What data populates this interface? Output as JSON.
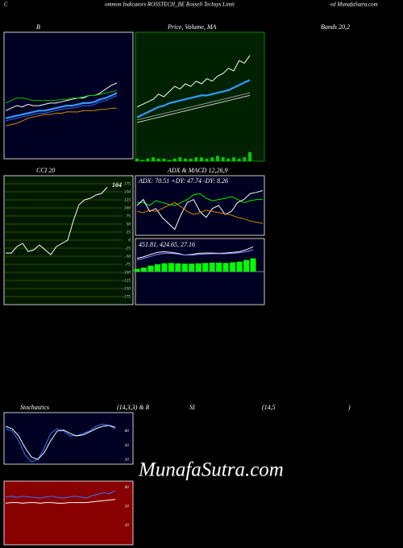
{
  "header": {
    "left": "C",
    "center": "ommon Indicators ROSSTECH_BE Rossell Techsys Limit",
    "right": "ed MunafaSutra.com"
  },
  "watermark": "MunafaSutra.com",
  "chart_data": [
    {
      "type": "line",
      "title": "B",
      "ylim": [
        0,
        100
      ],
      "series": [
        {
          "color": "#ffffff",
          "values": [
            38,
            40,
            42,
            41,
            43,
            42,
            42,
            43,
            44,
            44,
            45,
            46,
            47,
            48,
            48,
            50,
            50,
            52,
            55,
            58,
            60
          ]
        },
        {
          "color": "#00cc00",
          "values": [
            44,
            46,
            48,
            48,
            47,
            46,
            46,
            46,
            46,
            46,
            47,
            47,
            48,
            48,
            49,
            50,
            50,
            51,
            52,
            53,
            54
          ]
        },
        {
          "color": "#3399ff",
          "values": [
            32,
            33,
            34,
            35,
            36,
            37,
            38,
            38,
            39,
            40,
            41,
            42,
            42,
            43,
            44,
            44,
            45,
            47,
            48,
            50,
            52
          ]
        },
        {
          "color": "#3366ff",
          "values": [
            30,
            31,
            32,
            33,
            34,
            35,
            36,
            36,
            37,
            38,
            39,
            40,
            40,
            41,
            42,
            42,
            43,
            45,
            46,
            48,
            50
          ]
        },
        {
          "color": "#dd8800",
          "values": [
            26,
            27,
            28,
            30,
            32,
            33,
            34,
            35,
            35,
            36,
            36,
            37,
            37,
            37,
            38,
            38,
            38,
            39,
            39,
            40,
            40
          ]
        }
      ]
    },
    {
      "type": "line",
      "title": "Price, Volume, MA",
      "ylim": [
        0,
        100
      ],
      "series": [
        {
          "color": "#ffffff",
          "values": [
            42,
            44,
            46,
            48,
            52,
            50,
            54,
            58,
            56,
            60,
            58,
            62,
            60,
            64,
            62,
            66,
            68,
            72,
            70,
            78,
            76,
            82
          ]
        },
        {
          "color": "#3399ff",
          "values": [
            34,
            36,
            38,
            40,
            42,
            43,
            45,
            46,
            47,
            48,
            49,
            50,
            51,
            51,
            52,
            53,
            54,
            55,
            57,
            59,
            61,
            63
          ]
        },
        {
          "color": "#999999",
          "values": [
            32,
            33,
            34,
            35,
            36,
            37,
            38,
            39,
            40,
            41,
            42,
            43,
            44,
            45,
            46,
            47,
            48,
            49,
            50,
            51,
            52,
            53
          ]
        },
        {
          "color": "#cccccc",
          "values": [
            30,
            31,
            32,
            33,
            34,
            35,
            36,
            37,
            38,
            39,
            40,
            41,
            42,
            43,
            44,
            45,
            46,
            47,
            48,
            49,
            50,
            51
          ]
        }
      ],
      "volume": {
        "color": "#00cc00",
        "values": [
          2,
          1,
          2,
          3,
          2,
          2,
          1,
          2,
          3,
          2,
          2,
          3,
          3,
          2,
          3,
          4,
          3,
          2,
          3,
          2,
          3,
          7
        ]
      }
    },
    {
      "type": "line",
      "title": "Bands 20,2",
      "ylim": [
        0,
        100
      ],
      "series": []
    },
    {
      "type": "line",
      "title": "CCI 20",
      "annotation": "164",
      "ylim": [
        -200,
        200
      ],
      "yticks": [
        175,
        150,
        125,
        100,
        75,
        50,
        25,
        0,
        -25,
        -50,
        -75,
        -100,
        -125,
        -150,
        -175
      ],
      "grid": true,
      "series": [
        {
          "color": "#ffffff",
          "values": [
            -40,
            -40,
            -20,
            -10,
            -35,
            -30,
            -15,
            -30,
            -45,
            -20,
            -10,
            0,
            60,
            110,
            125,
            130,
            140,
            145,
            164
          ]
        }
      ]
    },
    {
      "type": "line",
      "title": "ADX & MACD 12,26,9",
      "annotation": "ADX: 70.51 +DY: 47.74 -DY: 8.26",
      "ylim": [
        0,
        100
      ],
      "series": [
        {
          "color": "#00ee00",
          "values": [
            55,
            55,
            50,
            58,
            55,
            52,
            50,
            55,
            60,
            68,
            70,
            62,
            58,
            60,
            62,
            65,
            60,
            55,
            58,
            60,
            60
          ]
        },
        {
          "color": "#ffffff",
          "values": [
            50,
            60,
            40,
            45,
            30,
            20,
            10,
            35,
            55,
            60,
            40,
            30,
            45,
            50,
            35,
            40,
            55,
            60,
            70,
            72,
            75
          ]
        },
        {
          "color": "#dd8800",
          "values": [
            40,
            38,
            42,
            40,
            45,
            50,
            55,
            48,
            40,
            35,
            38,
            42,
            40,
            38,
            36,
            34,
            30,
            28,
            24,
            22,
            20
          ]
        }
      ]
    },
    {
      "type": "line",
      "annotation": "451.81, 424.65, 27.16",
      "ylim": [
        -100,
        100
      ],
      "series": [
        {
          "color": "#ffffff",
          "values": [
            40,
            45,
            52,
            58,
            60,
            58,
            55,
            50,
            52,
            55,
            56,
            56,
            55,
            56,
            58,
            60,
            66,
            75
          ]
        },
        {
          "color": "#8888ff",
          "values": [
            35,
            40,
            46,
            52,
            55,
            55,
            53,
            50,
            50,
            52,
            53,
            54,
            54,
            54,
            55,
            57,
            60,
            66
          ]
        }
      ],
      "histogram": {
        "color": "#00ff00",
        "values": [
          8,
          12,
          18,
          22,
          25,
          26,
          25,
          24,
          24,
          25,
          26,
          27,
          27,
          26,
          28,
          30,
          35,
          40
        ]
      }
    },
    {
      "type": "line",
      "title_parts": [
        "Stochastics",
        "(14,3,3) & R",
        "SI",
        "(14,5",
        ")"
      ],
      "ylim": [
        10,
        119
      ],
      "yticks": [
        80,
        50,
        20
      ],
      "series": [
        {
          "color": "#3377ff",
          "values": [
            85,
            80,
            60,
            30,
            15,
            20,
            45,
            75,
            85,
            80,
            70,
            70,
            75,
            80,
            90,
            95,
            92,
            85
          ]
        },
        {
          "color": "#ffffff",
          "values": [
            90,
            85,
            70,
            45,
            25,
            20,
            35,
            60,
            80,
            82,
            75,
            70,
            72,
            78,
            85,
            90,
            92,
            88
          ]
        }
      ]
    },
    {
      "type": "line",
      "ylim": [
        -11,
        90
      ],
      "yticks": [
        80,
        50,
        20
      ],
      "series": [
        {
          "color": "#3377ff",
          "values": [
            65,
            66,
            64,
            66,
            65,
            64,
            63,
            65,
            66,
            64,
            63,
            65,
            66,
            65,
            63,
            67,
            69,
            72,
            70,
            75
          ]
        },
        {
          "color": "#ffffff",
          "values": [
            55,
            56,
            56,
            55,
            56,
            56,
            55,
            56,
            56,
            55,
            55,
            56,
            56,
            56,
            56,
            57,
            58,
            59,
            60,
            61
          ]
        }
      ]
    }
  ]
}
